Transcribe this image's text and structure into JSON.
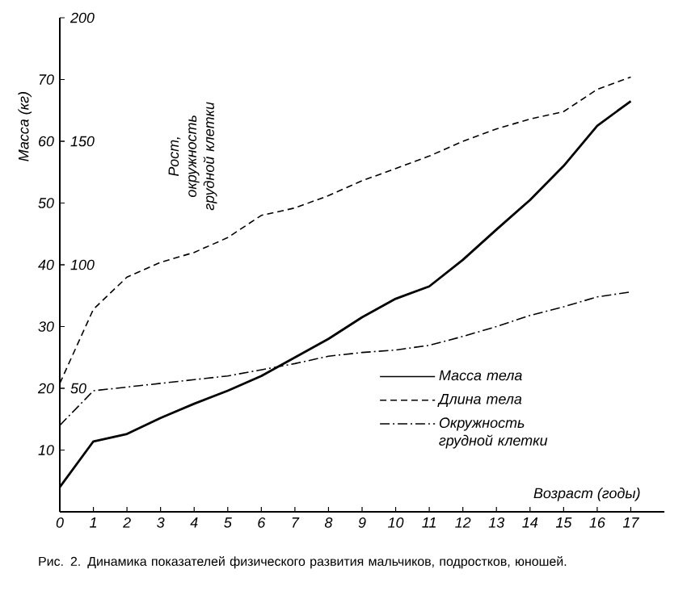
{
  "chart_data": {
    "type": "line",
    "xlabel": "Возраст (годы)",
    "ylabel": "Масса (кг)",
    "y2label": "Рост, окружность грудной клетки",
    "x": [
      0,
      1,
      2,
      3,
      4,
      5,
      6,
      7,
      8,
      9,
      10,
      11,
      12,
      13,
      14,
      15,
      16,
      17
    ],
    "xlim": [
      0,
      18
    ],
    "xticks": [
      0,
      1,
      2,
      3,
      4,
      5,
      6,
      7,
      8,
      9,
      10,
      11,
      12,
      13,
      14,
      15,
      16,
      17
    ],
    "ylim": [
      0,
      80
    ],
    "yticks": [
      10,
      20,
      30,
      40,
      50,
      60,
      70
    ],
    "y2lim": [
      0,
      200
    ],
    "y2ticks": [
      50,
      100,
      150,
      200
    ],
    "grid": false,
    "legend": "right",
    "series": [
      {
        "name": "Масса тела",
        "color": "#000000",
        "line_style": "solid",
        "values": [
          4,
          11.4,
          12.6,
          15.2,
          17.5,
          19.6,
          22,
          25,
          28,
          31.5,
          34.5,
          36.5,
          40.8,
          45.7,
          50.5,
          56,
          62.5,
          66.5
        ]
      },
      {
        "name": "Длина тела",
        "color": "#000000",
        "line_style": "dashed",
        "axis": "y2",
        "values": [
          52,
          82,
          95,
          101,
          105,
          111,
          120,
          123,
          128,
          134,
          139,
          144,
          150,
          155,
          159,
          162,
          171,
          176
        ]
      },
      {
        "name": "Окружность грудной клетки",
        "color": "#000000",
        "line_style": "dashdot",
        "axis": "y2",
        "values": [
          35,
          49,
          50.5,
          52,
          53.5,
          55,
          57.5,
          60,
          63,
          64.5,
          65.5,
          67.4,
          71,
          75,
          79.5,
          83,
          87,
          89
        ]
      }
    ],
    "annotations": [
      "Рис. 2. Динамика показателей физического развития мальчиков, подростков, юношей."
    ]
  }
}
